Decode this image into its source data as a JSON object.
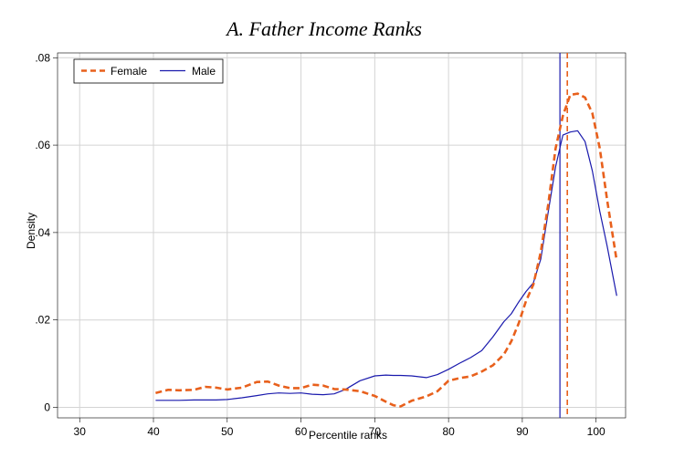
{
  "chart_data": {
    "type": "line",
    "title": "A. Father Income Ranks",
    "xlabel": "Percentile ranks",
    "ylabel": "Density",
    "xlim": [
      27,
      104
    ],
    "ylim": [
      -0.0024,
      0.0811
    ],
    "x_ticks": [
      30,
      40,
      50,
      60,
      70,
      80,
      90,
      100
    ],
    "x_tick_labels": [
      "30",
      "40",
      "50",
      "60",
      "70",
      "80",
      "90",
      "100"
    ],
    "y_ticks": [
      0,
      0.02,
      0.04,
      0.06,
      0.08
    ],
    "y_tick_labels": [
      "0",
      ".02",
      ".04",
      ".06",
      ".08"
    ],
    "grid": true,
    "legend_position": "top-left",
    "colors": {
      "female": "#e8601c",
      "male": "#1a1aad",
      "grid": "#d4d4d4"
    },
    "series": [
      {
        "name": "Female",
        "style": "dashed",
        "x": [
          40.3,
          42,
          43.5,
          45.5,
          47,
          48.5,
          50,
          52,
          54,
          55.5,
          57,
          58.5,
          60,
          61.5,
          63,
          64.5,
          66,
          68,
          70,
          71.5,
          72.5,
          73.5,
          75,
          77,
          78.5,
          80,
          81.5,
          83,
          84.5,
          86,
          87.5,
          88.5,
          89.5,
          90.5,
          91.5,
          92.5,
          93.5,
          94.5,
          95.5,
          96.5,
          97.5,
          98.5,
          99.5,
          100.5,
          101.5,
          102.8
        ],
        "y": [
          0.0033,
          0.004,
          0.0039,
          0.004,
          0.0047,
          0.0045,
          0.0041,
          0.0045,
          0.0058,
          0.0059,
          0.005,
          0.0044,
          0.0044,
          0.0052,
          0.005,
          0.0042,
          0.0041,
          0.0037,
          0.0026,
          0.0013,
          0.0005,
          0.0002,
          0.0015,
          0.0025,
          0.0037,
          0.0061,
          0.0067,
          0.0071,
          0.0082,
          0.0096,
          0.0121,
          0.0151,
          0.0192,
          0.0243,
          0.0281,
          0.0355,
          0.0463,
          0.0592,
          0.0667,
          0.0715,
          0.0718,
          0.0709,
          0.0673,
          0.0593,
          0.0474,
          0.0335
        ]
      },
      {
        "name": "Male",
        "style": "solid",
        "x": [
          40.3,
          42,
          43.5,
          45.5,
          47,
          48.5,
          50,
          52,
          54,
          55.5,
          57,
          58.5,
          60,
          61.5,
          63,
          64.5,
          66,
          68,
          70,
          71.5,
          72.5,
          73.5,
          75,
          77,
          78.5,
          80,
          81.5,
          83,
          84.5,
          86,
          87.5,
          88.5,
          89.5,
          90.5,
          91.5,
          92.5,
          93.5,
          94.5,
          95.5,
          96.5,
          97.5,
          98.5,
          99.5,
          100.5,
          101.5,
          102.8
        ],
        "y": [
          0.0016,
          0.0016,
          0.0016,
          0.0017,
          0.0017,
          0.0017,
          0.0018,
          0.0022,
          0.0027,
          0.0031,
          0.0033,
          0.0032,
          0.0033,
          0.003,
          0.0029,
          0.0031,
          0.0041,
          0.0061,
          0.0072,
          0.0074,
          0.0073,
          0.0073,
          0.0072,
          0.0068,
          0.0075,
          0.0087,
          0.0101,
          0.0114,
          0.013,
          0.0161,
          0.0196,
          0.0214,
          0.0241,
          0.0265,
          0.0285,
          0.0339,
          0.0446,
          0.055,
          0.0623,
          0.063,
          0.0633,
          0.0608,
          0.0541,
          0.0449,
          0.0369,
          0.0255
        ]
      }
    ],
    "vlines": [
      {
        "name": "Male",
        "x": 95.1,
        "style": "solid"
      },
      {
        "name": "Female",
        "x": 96.1,
        "style": "dashed"
      }
    ]
  }
}
